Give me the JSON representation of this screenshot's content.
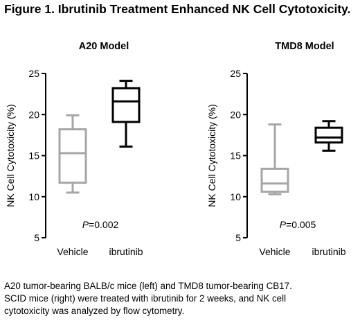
{
  "figure": {
    "title": "Figure 1. Ibrutinib Treatment Enhanced NK Cell Cytotoxicity.",
    "caption_lines": [
      "A20 tumor-bearing BALB/c mice (left) and TMD8 tumor-bearing CB17.",
      "SCID mice (right) were treated with ibrutinib for 2 weeks, and NK cell",
      "cytotoxicity was analyzed by flow cytometry."
    ]
  },
  "chart_data": [
    {
      "type": "box",
      "title": "A20 Model",
      "xlabel": "",
      "ylabel": "NK Cell Cytotoxicity (%)",
      "ylim": [
        5,
        25
      ],
      "yticks": [
        5,
        10,
        15,
        20,
        25
      ],
      "categories": [
        "Vehicle",
        "ibrutinib"
      ],
      "boxes": [
        {
          "name": "Vehicle",
          "min": 10.5,
          "q1": 11.7,
          "median": 15.3,
          "q3": 18.2,
          "max": 19.9,
          "color": "#a6a6a6"
        },
        {
          "name": "ibrutinib",
          "min": 16.1,
          "q1": 19.1,
          "median": 21.6,
          "q3": 23.2,
          "max": 24.1,
          "color": "#000000"
        }
      ],
      "annotation": {
        "italic": "P",
        "rest": "=0.002"
      }
    },
    {
      "type": "box",
      "title": "TMD8 Model",
      "xlabel": "",
      "ylabel": "NK Cell Cytotoxicity (%)",
      "ylim": [
        5,
        25
      ],
      "yticks": [
        5,
        10,
        15,
        20,
        25
      ],
      "categories": [
        "Vehicle",
        "ibrutinib"
      ],
      "boxes": [
        {
          "name": "Vehicle",
          "min": 10.3,
          "q1": 10.6,
          "median": 11.6,
          "q3": 13.4,
          "max": 18.8,
          "color": "#a6a6a6"
        },
        {
          "name": "ibrutinib",
          "min": 15.6,
          "q1": 16.6,
          "median": 17.2,
          "q3": 18.4,
          "max": 19.2,
          "color": "#000000"
        }
      ],
      "annotation": {
        "italic": "P",
        "rest": "=0.005"
      }
    }
  ]
}
